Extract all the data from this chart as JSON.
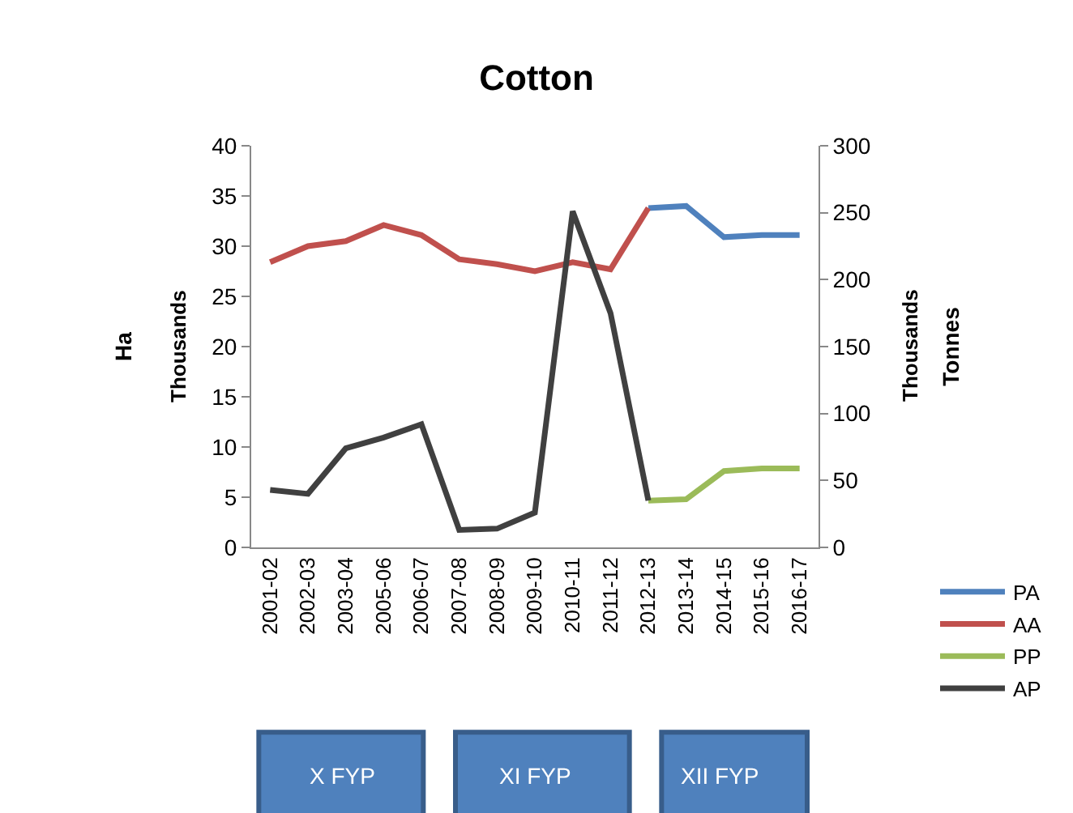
{
  "chart_data": {
    "type": "line",
    "title": "Cotton",
    "ylabel": "Ha",
    "y2label": "Tonnes",
    "annotations": [
      "Thousands",
      "Thousands",
      "X FYP",
      "XI FYP",
      "XII FYP"
    ],
    "categories": [
      "2001-02",
      "2002-03",
      "2003-04",
      "2005-06",
      "2006-07",
      "2007-08",
      "2008-09",
      "2009-10",
      "2010-11",
      "2011-12",
      "2012-13",
      "2013-14",
      "2014-15",
      "2015-16",
      "2016-17"
    ],
    "series": [
      {
        "name": "PA",
        "color": "#4f81bd",
        "values": [
          null,
          null,
          null,
          null,
          null,
          null,
          null,
          null,
          null,
          null,
          33.8,
          34.0,
          30.9,
          31.1,
          31.1
        ]
      },
      {
        "name": "AA",
        "color": "#c0504d",
        "values": [
          28.4,
          30.0,
          30.5,
          32.1,
          31.1,
          28.7,
          28.2,
          27.5,
          28.4,
          27.7,
          33.8,
          null,
          null,
          null,
          null
        ]
      },
      {
        "name": "PP",
        "color": "#9bbb59",
        "axis": "y2",
        "values": [
          null,
          null,
          null,
          null,
          null,
          null,
          null,
          null,
          null,
          null,
          35,
          36,
          57,
          59,
          59
        ]
      },
      {
        "name": "AP",
        "color": "#404040",
        "axis": "y2",
        "values": [
          43,
          40,
          74,
          82,
          92,
          13,
          14,
          26,
          251,
          175,
          35,
          null,
          null,
          null,
          null
        ]
      }
    ],
    "ylim": [
      0,
      40
    ],
    "yticks": [
      0,
      5,
      10,
      15,
      20,
      25,
      30,
      35,
      40
    ],
    "y2lim": [
      0,
      300
    ],
    "y2ticks": [
      0,
      50,
      100,
      150,
      200,
      250,
      300
    ],
    "grid": false,
    "legend": "bottom right",
    "marker": "none",
    "line_style": "solid"
  }
}
